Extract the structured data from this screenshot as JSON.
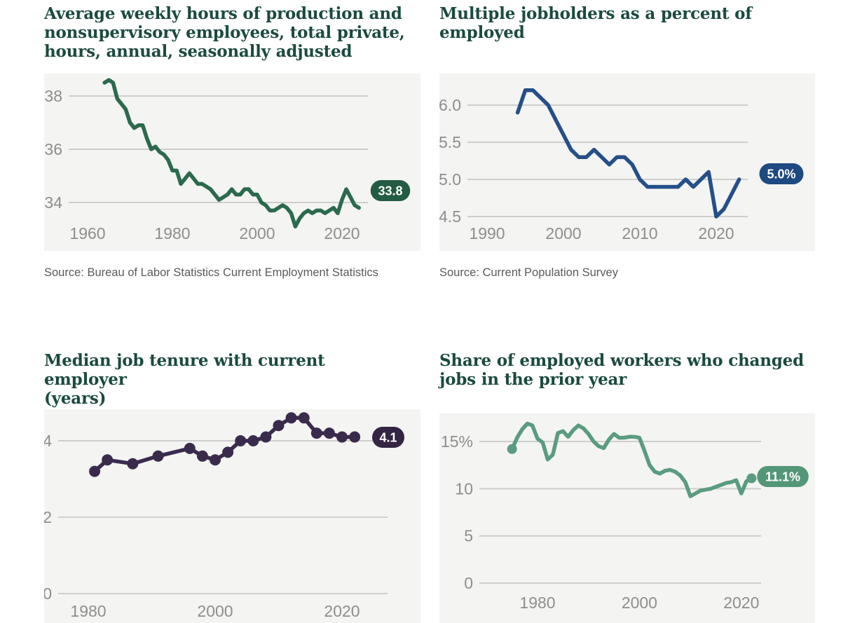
{
  "page": {
    "background": "#ffffff",
    "panel_background": "#f4f4f2",
    "gridline_color": "#cecece",
    "title_color": "#1b4a40",
    "tick_color": "#8e8e8e"
  },
  "charts": [
    {
      "title": "Average weekly hours of production and nonsupervisory employees, total private, hours, annual, seasonally adjusted",
      "title_lines": [
        "Average weekly hours of production and",
        "nonsupervisory employees, total private,",
        "hours, annual, seasonally adjusted"
      ],
      "source": "Source: Bureau of Labor Statistics Current Employment Statistics",
      "badge": "33.8",
      "color": "#2b6a4d",
      "badge_color": "#235c42",
      "chart_data": {
        "type": "line",
        "x": [
          1964,
          1965,
          1966,
          1967,
          1968,
          1969,
          1970,
          1971,
          1972,
          1973,
          1974,
          1975,
          1976,
          1977,
          1978,
          1979,
          1980,
          1981,
          1982,
          1983,
          1984,
          1985,
          1986,
          1987,
          1988,
          1989,
          1990,
          1991,
          1992,
          1993,
          1994,
          1995,
          1996,
          1997,
          1998,
          1999,
          2000,
          2001,
          2002,
          2003,
          2004,
          2005,
          2006,
          2007,
          2008,
          2009,
          2010,
          2011,
          2012,
          2013,
          2014,
          2015,
          2016,
          2017,
          2018,
          2019,
          2020,
          2021,
          2022,
          2023,
          2024
        ],
        "y": [
          38.5,
          38.6,
          38.5,
          37.9,
          37.7,
          37.5,
          37.0,
          36.8,
          36.9,
          36.9,
          36.4,
          36.0,
          36.1,
          35.9,
          35.8,
          35.6,
          35.2,
          35.2,
          34.7,
          34.9,
          35.1,
          34.9,
          34.7,
          34.7,
          34.6,
          34.5,
          34.3,
          34.1,
          34.2,
          34.3,
          34.5,
          34.3,
          34.3,
          34.5,
          34.5,
          34.3,
          34.3,
          34.0,
          33.9,
          33.7,
          33.7,
          33.8,
          33.9,
          33.8,
          33.6,
          33.1,
          33.4,
          33.6,
          33.7,
          33.6,
          33.7,
          33.7,
          33.6,
          33.7,
          33.8,
          33.6,
          34.1,
          34.5,
          34.2,
          33.9,
          33.8
        ],
        "last_value_label": "33.8",
        "x_ticks": [
          1960,
          1980,
          2000,
          2020
        ],
        "x_tick_labels": [
          "1960",
          "1980",
          "2000",
          "2020"
        ],
        "y_ticks": [
          38,
          36,
          34
        ],
        "y_tick_labels": [
          "38",
          "36",
          "34"
        ],
        "xlim": [
          1955,
          2026
        ],
        "ylim": [
          32.2,
          38.9
        ],
        "grid": true,
        "legend": "none",
        "markers": "none"
      }
    },
    {
      "title": "Multiple jobholders as a percent of employed",
      "title_lines": [
        "Multiple jobholders as a percent of employed"
      ],
      "source": "Source: Current Population Survey",
      "badge": "5.0%",
      "color": "#254f88",
      "badge_color": "#1d4a80",
      "chart_data": {
        "type": "line",
        "x": [
          1994,
          1995,
          1996,
          1997,
          1998,
          1999,
          2000,
          2001,
          2002,
          2003,
          2004,
          2005,
          2006,
          2007,
          2008,
          2009,
          2010,
          2011,
          2012,
          2013,
          2014,
          2015,
          2016,
          2017,
          2018,
          2019,
          2020,
          2021,
          2022,
          2023
        ],
        "y": [
          5.9,
          6.2,
          6.2,
          6.1,
          6.0,
          5.8,
          5.6,
          5.4,
          5.3,
          5.3,
          5.4,
          5.3,
          5.2,
          5.3,
          5.3,
          5.2,
          5.0,
          4.9,
          4.9,
          4.9,
          4.9,
          4.9,
          5.0,
          4.9,
          5.0,
          5.1,
          4.5,
          4.6,
          4.8,
          5.0
        ],
        "last_value_label": "5.0%",
        "x_ticks": [
          1990,
          2000,
          2010,
          2020
        ],
        "x_tick_labels": [
          "1990",
          "2000",
          "2010",
          "2020"
        ],
        "y_ticks": [
          6.0,
          5.5,
          5.0,
          4.5
        ],
        "y_tick_labels": [
          "6.0",
          "5.5",
          "5.0",
          "4.5"
        ],
        "xlim": [
          1987,
          2024
        ],
        "ylim": [
          4.3,
          6.4
        ],
        "grid": true,
        "legend": "none",
        "markers": "none"
      }
    },
    {
      "title": "Median job tenure with current employer (years)",
      "title_lines": [
        "Median job tenure with current employer",
        "(years)"
      ],
      "source": "",
      "badge": "4.1",
      "color": "#3a2b4d",
      "badge_color": "#342544",
      "chart_data": {
        "type": "line",
        "x": [
          1981,
          1983,
          1987,
          1991,
          1996,
          1998,
          2000,
          2002,
          2004,
          2006,
          2008,
          2010,
          2012,
          2014,
          2016,
          2018,
          2020,
          2022
        ],
        "y": [
          3.2,
          3.5,
          3.4,
          3.6,
          3.8,
          3.6,
          3.5,
          3.7,
          4.0,
          4.0,
          4.1,
          4.4,
          4.6,
          4.6,
          4.2,
          4.2,
          4.1,
          4.1
        ],
        "last_value_label": "4.1",
        "x_ticks": [
          1980,
          2000,
          2020
        ],
        "x_tick_labels": [
          "1980",
          "2000",
          "2020"
        ],
        "y_ticks": [
          4,
          2,
          0
        ],
        "y_tick_labels": [
          "4",
          "2",
          "0"
        ],
        "xlim": [
          1975,
          2027
        ],
        "ylim": [
          0,
          4.8
        ],
        "grid": true,
        "legend": "none",
        "markers": "all"
      }
    },
    {
      "title": "Share of employed workers who changed jobs in the prior year",
      "title_lines": [
        "Share of employed workers who changed",
        "jobs in the prior year"
      ],
      "source": "",
      "badge": "11.1%",
      "color": "#5a9c80",
      "badge_color": "#549678",
      "chart_data": {
        "type": "line",
        "x": [
          1975,
          1976,
          1977,
          1978,
          1979,
          1980,
          1981,
          1982,
          1983,
          1984,
          1985,
          1986,
          1987,
          1988,
          1989,
          1990,
          1991,
          1992,
          1993,
          1994,
          1995,
          1996,
          1997,
          1998,
          1999,
          2000,
          2001,
          2002,
          2003,
          2004,
          2005,
          2006,
          2007,
          2008,
          2009,
          2010,
          2011,
          2012,
          2013,
          2014,
          2015,
          2016,
          2017,
          2018,
          2019,
          2020,
          2021,
          2022
        ],
        "y": [
          14.2,
          15.4,
          16.3,
          16.9,
          16.7,
          15.3,
          14.9,
          13.1,
          13.6,
          15.9,
          16.1,
          15.5,
          16.2,
          16.7,
          16.4,
          15.8,
          15.0,
          14.5,
          14.3,
          15.2,
          15.8,
          15.4,
          15.4,
          15.5,
          15.5,
          15.4,
          14.0,
          12.5,
          11.8,
          11.6,
          11.9,
          12.0,
          11.8,
          11.4,
          10.7,
          9.2,
          9.5,
          9.8,
          9.9,
          10.0,
          10.2,
          10.4,
          10.6,
          10.7,
          10.9,
          9.5,
          10.8,
          11.1
        ],
        "last_value_label": "11.1%",
        "x_ticks": [
          1980,
          2000,
          2020
        ],
        "x_tick_labels": [
          "1980",
          "2000",
          "2020"
        ],
        "y_ticks": [
          15,
          10,
          5,
          0
        ],
        "y_tick_labels": [
          "15%",
          "10",
          "5",
          "0"
        ],
        "xlim": [
          1969,
          2025
        ],
        "ylim": [
          0,
          18
        ],
        "grid": true,
        "legend": "none",
        "markers": "ends"
      }
    }
  ]
}
